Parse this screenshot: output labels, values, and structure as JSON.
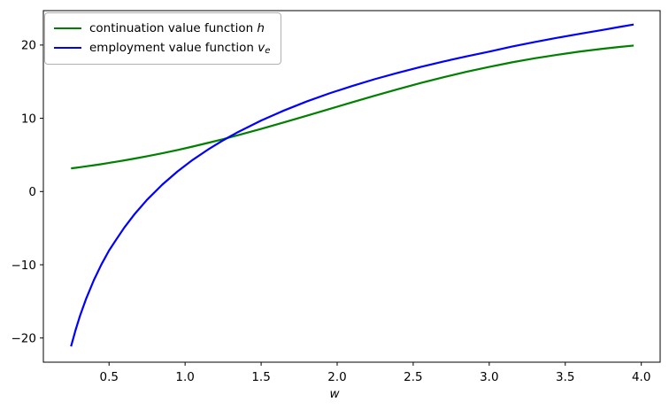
{
  "figure": {
    "background": "#ffffff",
    "xlabel": "w",
    "legend": {
      "position": "upper left",
      "items": [
        {
          "label_text": "continuation value function ",
          "label_math": "h",
          "label_math_sub": "",
          "color": "#008000"
        },
        {
          "label_text": "employment value function ",
          "label_math": "v",
          "label_math_sub": "e",
          "color": "#0000ff"
        }
      ]
    }
  },
  "chart_data": {
    "type": "line",
    "title": "",
    "xlabel": "w",
    "ylabel": "",
    "grid": false,
    "legend_position": "upper left",
    "xlim": [
      0.068,
      4.124
    ],
    "ylim": [
      -23.3,
      24.7
    ],
    "xticks": [
      0.5,
      1.0,
      1.5,
      2.0,
      2.5,
      3.0,
      3.5,
      4.0
    ],
    "xtick_labels": [
      "0.5",
      "1.0",
      "1.5",
      "2.0",
      "2.5",
      "3.0",
      "3.5",
      "4.0"
    ],
    "yticks": [
      -20,
      -10,
      0,
      10,
      20
    ],
    "ytick_labels": [
      "−20",
      "−10",
      "0",
      "10",
      "20"
    ],
    "x": [
      0.25,
      0.28,
      0.31,
      0.35,
      0.4,
      0.45,
      0.5,
      0.55,
      0.6,
      0.67,
      0.75,
      0.85,
      0.95,
      1.05,
      1.15,
      1.25,
      1.35,
      1.5,
      1.65,
      1.8,
      1.95,
      2.1,
      2.25,
      2.4,
      2.55,
      2.7,
      2.85,
      3.0,
      3.15,
      3.3,
      3.45,
      3.6,
      3.75,
      3.85,
      3.95
    ],
    "series": [
      {
        "name": "continuation value function h",
        "color": "#008000",
        "line_width": 2.2,
        "values": [
          3.16,
          3.24,
          3.32,
          3.44,
          3.59,
          3.74,
          3.91,
          4.08,
          4.25,
          4.51,
          4.82,
          5.23,
          5.67,
          6.14,
          6.64,
          7.15,
          7.7,
          8.55,
          9.44,
          10.35,
          11.27,
          12.2,
          13.1,
          13.98,
          14.82,
          15.61,
          16.35,
          17.02,
          17.64,
          18.19,
          18.68,
          19.12,
          19.5,
          19.73,
          19.93
        ]
      },
      {
        "name": "employment value function v_e",
        "color": "#0000ff",
        "line_width": 2.2,
        "values": [
          -21.15,
          -18.9,
          -16.9,
          -14.6,
          -12.1,
          -9.95,
          -8.05,
          -6.47,
          -4.93,
          -3.03,
          -1.12,
          0.94,
          2.74,
          4.32,
          5.72,
          6.99,
          8.14,
          9.69,
          11.06,
          12.3,
          13.41,
          14.42,
          15.36,
          16.21,
          17.01,
          17.76,
          18.45,
          19.1,
          19.8,
          20.42,
          21.0,
          21.55,
          22.08,
          22.45,
          22.8
        ]
      }
    ],
    "annotations": {
      "crossing_point_approx": [
        1.31,
        7.5
      ]
    }
  }
}
